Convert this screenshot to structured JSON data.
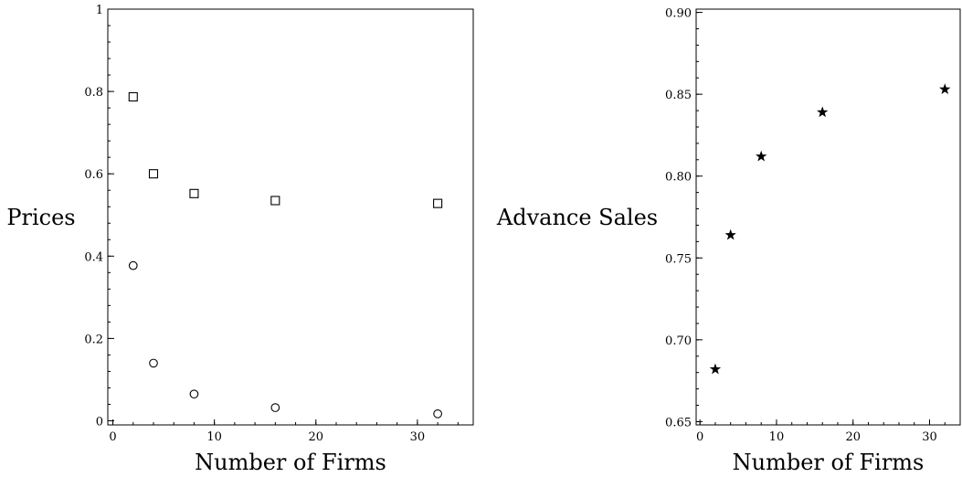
{
  "chart_data": [
    {
      "type": "scatter",
      "title": "",
      "xlabel": "Number of Firms",
      "ylabel": "Prices",
      "xlim": [
        -0.5,
        35.5
      ],
      "ylim": [
        -0.01,
        1.0
      ],
      "x_ticks": [
        0,
        10,
        20,
        30
      ],
      "x_tick_labels": [
        "0",
        "10",
        "20",
        "30"
      ],
      "y_ticks": [
        0,
        0.2,
        0.4,
        0.6,
        0.8,
        1
      ],
      "y_tick_labels": [
        "0",
        "0.2",
        "0.4",
        "0.6",
        "0.8",
        "1"
      ],
      "grid": false,
      "series": [
        {
          "marker": "square",
          "x": [
            2,
            4,
            8,
            16,
            32
          ],
          "y": [
            0.787,
            0.6,
            0.552,
            0.535,
            0.528
          ]
        },
        {
          "marker": "circle",
          "x": [
            2,
            4,
            8,
            16,
            32
          ],
          "y": [
            0.377,
            0.14,
            0.065,
            0.032,
            0.017
          ]
        }
      ]
    },
    {
      "type": "scatter",
      "title": "",
      "xlabel": "Number of Firms",
      "ylabel": "Advance Sales",
      "xlim": [
        -0.5,
        34
      ],
      "ylim": [
        0.648,
        0.902
      ],
      "x_ticks": [
        0,
        10,
        20,
        30
      ],
      "x_tick_labels": [
        "0",
        "10",
        "20",
        "30"
      ],
      "y_ticks": [
        0.65,
        0.7,
        0.75,
        0.8,
        0.85,
        0.9
      ],
      "y_tick_labels": [
        "0.65",
        "0.70",
        "0.75",
        "0.80",
        "0.85",
        "0.90"
      ],
      "grid": false,
      "series": [
        {
          "marker": "star",
          "x": [
            2,
            4,
            8,
            16,
            32
          ],
          "y": [
            0.682,
            0.764,
            0.812,
            0.839,
            0.853
          ]
        }
      ]
    }
  ]
}
